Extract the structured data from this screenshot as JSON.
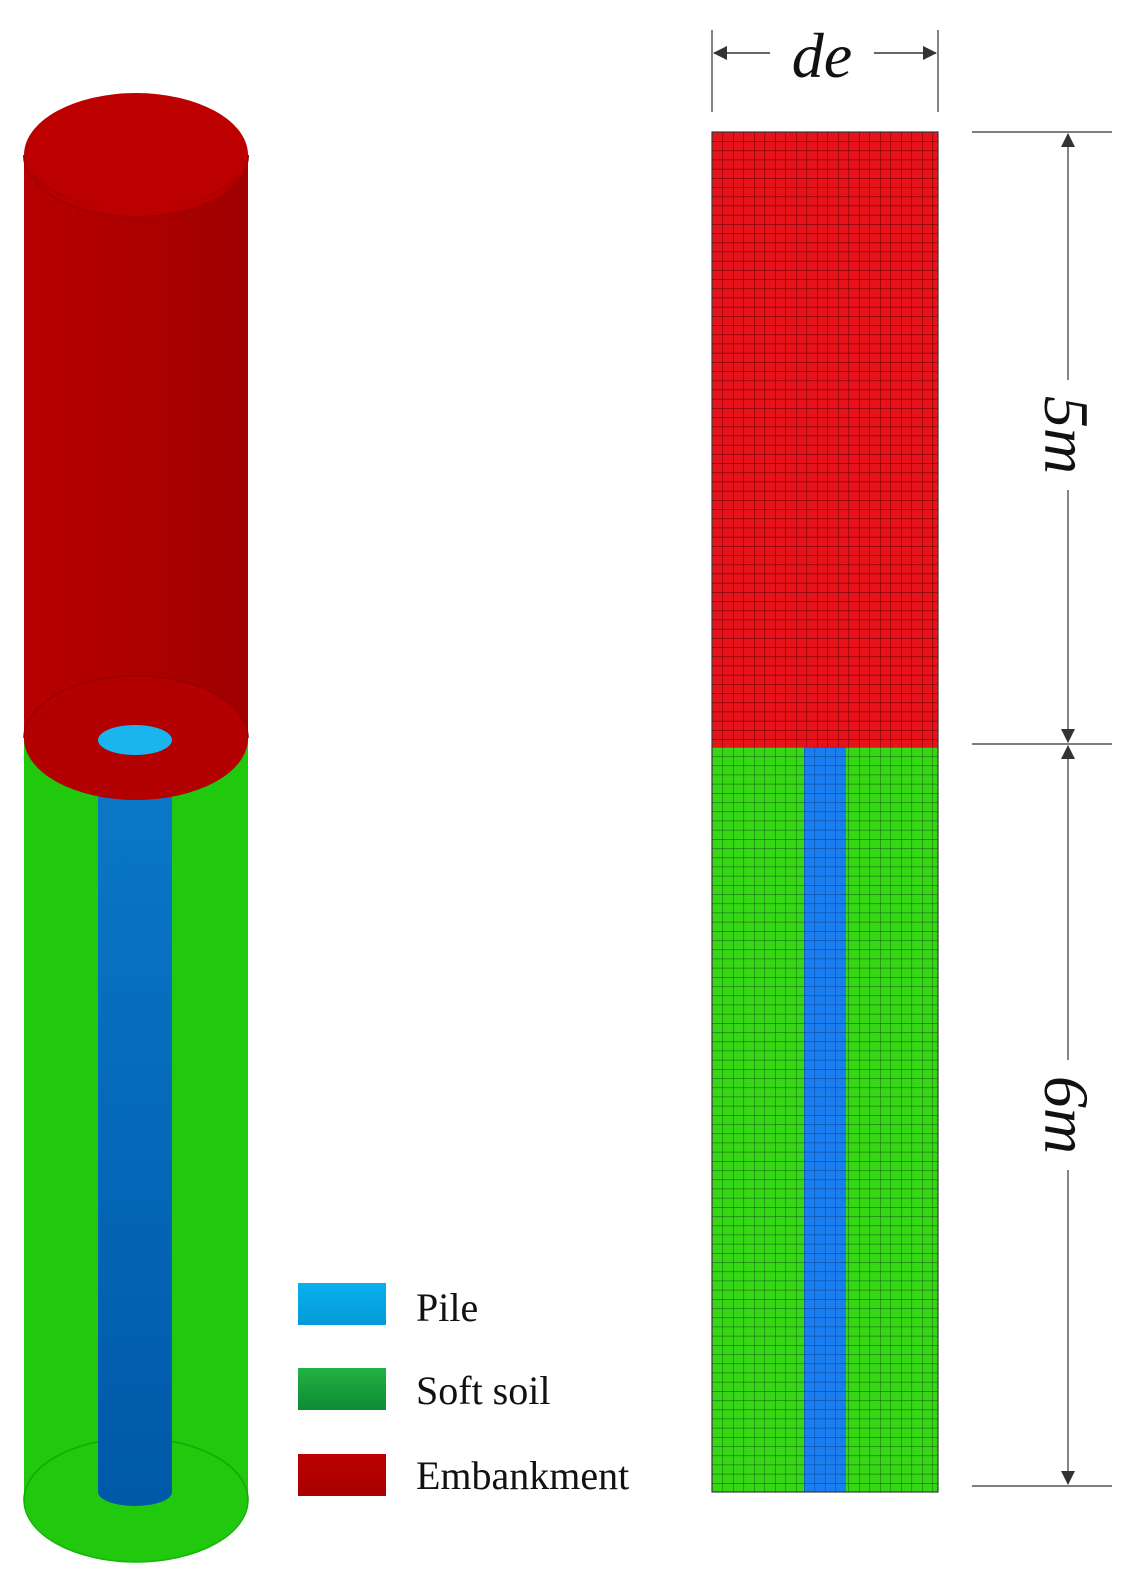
{
  "legend": [
    {
      "label": "Pile",
      "color": "#0aa6e6"
    },
    {
      "label": "Soft soil",
      "color": "#1e9f3c"
    },
    {
      "label": "Embankment",
      "color": "#b30000"
    }
  ],
  "dimensions": {
    "width_label": "de",
    "embankment_height_label": "5m",
    "soil_depth_label": "6m"
  },
  "colors": {
    "embankment": "#b50000",
    "embankment_mesh": "#e8141a",
    "soft_soil": "#22c80e",
    "soft_soil_mesh": "#3ddc14",
    "pile_3d": "#0068b8",
    "pile_top": "#1ab4ee",
    "pile_mesh": "#1a7ef0"
  }
}
